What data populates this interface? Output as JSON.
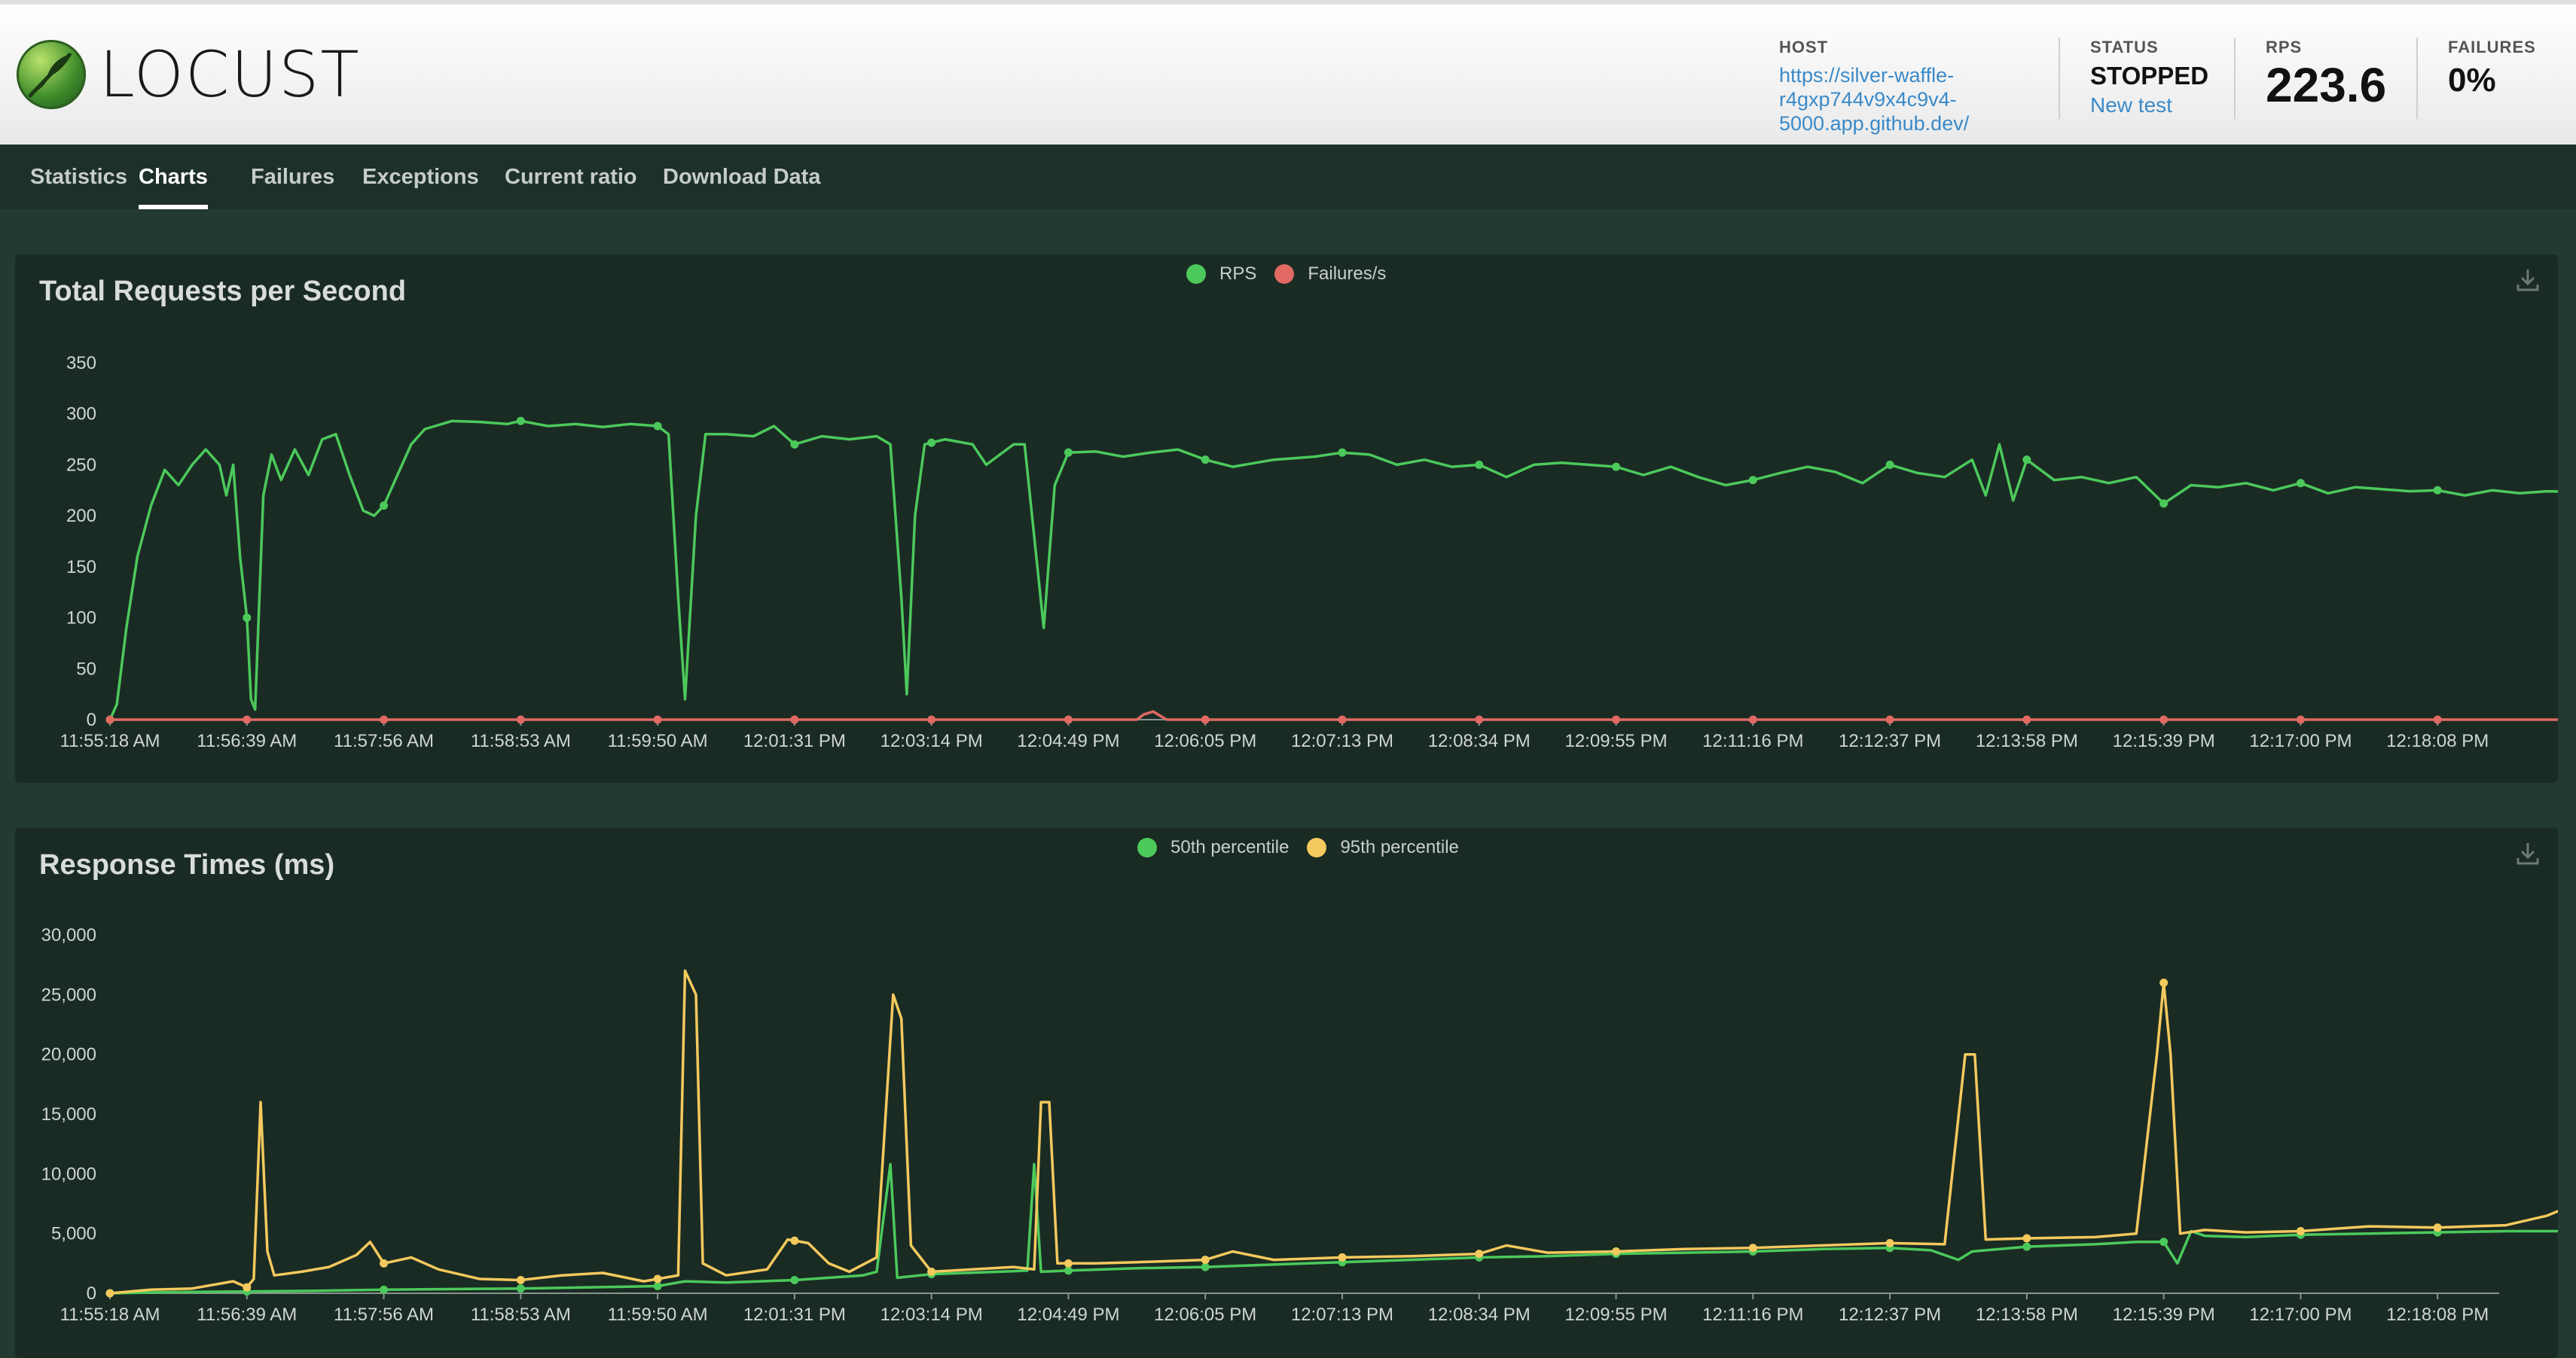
{
  "app": {
    "logo_text": "LOCUST"
  },
  "header": {
    "host_label": "HOST",
    "host_lines": [
      "https://silver-waffle-",
      "r4gxp744v9x4c9v4-",
      "5000.app.github.dev/"
    ],
    "status_label": "STATUS",
    "status_value": "STOPPED",
    "new_test_label": "New test",
    "rps_label": "RPS",
    "rps_value": "223.6",
    "failures_label": "FAILURES",
    "failures_value": "0%"
  },
  "tabs": [
    {
      "label": "Statistics",
      "active": false
    },
    {
      "label": "Charts",
      "active": true
    },
    {
      "label": "Failures",
      "active": false
    },
    {
      "label": "Exceptions",
      "active": false
    },
    {
      "label": "Current ratio",
      "active": false
    },
    {
      "label": "Download Data",
      "active": false
    }
  ],
  "icons": {
    "download": "download-icon",
    "logo": "locust-logo-icon"
  },
  "colors": {
    "rps": "#4cc95b",
    "failures": "#e06a63",
    "p50": "#4cc95b",
    "p95": "#f4c95d"
  },
  "chart_data": [
    {
      "type": "line",
      "title": "Total Requests per Second",
      "x": [
        "11:55:18 AM",
        "11:56:39 AM",
        "11:57:56 AM",
        "11:58:53 AM",
        "11:59:50 AM",
        "12:01:31 PM",
        "12:03:14 PM",
        "12:04:49 PM",
        "12:06:05 PM",
        "12:07:13 PM",
        "12:08:34 PM",
        "12:09:55 PM",
        "12:11:16 PM",
        "12:12:37 PM",
        "12:13:58 PM",
        "12:15:39 PM",
        "12:17:00 PM",
        "12:18:08 PM"
      ],
      "yticks": [
        "0",
        "50",
        "100",
        "150",
        "200",
        "250",
        "300",
        "350"
      ],
      "ylim": [
        0,
        350
      ],
      "legend_position": "top-center",
      "series": [
        {
          "name": "RPS",
          "color": "#4cc95b",
          "values": [
            [
              0,
              0
            ],
            [
              0.05,
              15
            ],
            [
              0.12,
              90
            ],
            [
              0.2,
              160
            ],
            [
              0.3,
              210
            ],
            [
              0.4,
              245
            ],
            [
              0.5,
              230
            ],
            [
              0.6,
              250
            ],
            [
              0.7,
              265
            ],
            [
              0.8,
              250
            ],
            [
              0.85,
              220
            ],
            [
              0.9,
              250
            ],
            [
              0.95,
              160
            ],
            [
              1.0,
              100
            ],
            [
              1.03,
              20
            ],
            [
              1.06,
              10
            ],
            [
              1.12,
              220
            ],
            [
              1.18,
              260
            ],
            [
              1.25,
              235
            ],
            [
              1.35,
              265
            ],
            [
              1.45,
              240
            ],
            [
              1.55,
              275
            ],
            [
              1.65,
              280
            ],
            [
              1.75,
              240
            ],
            [
              1.85,
              205
            ],
            [
              1.93,
              200
            ],
            [
              2.0,
              210
            ],
            [
              2.1,
              240
            ],
            [
              2.2,
              270
            ],
            [
              2.3,
              285
            ],
            [
              2.5,
              293
            ],
            [
              2.7,
              292
            ],
            [
              2.9,
              290
            ],
            [
              3.0,
              293
            ],
            [
              3.2,
              288
            ],
            [
              3.4,
              290
            ],
            [
              3.6,
              287
            ],
            [
              3.8,
              290
            ],
            [
              4.0,
              288
            ],
            [
              4.08,
              280
            ],
            [
              4.15,
              120
            ],
            [
              4.2,
              20
            ],
            [
              4.28,
              200
            ],
            [
              4.35,
              280
            ],
            [
              4.5,
              280
            ],
            [
              4.7,
              278
            ],
            [
              4.85,
              288
            ],
            [
              5.0,
              270
            ],
            [
              5.2,
              278
            ],
            [
              5.4,
              275
            ],
            [
              5.6,
              278
            ],
            [
              5.7,
              270
            ],
            [
              5.78,
              120
            ],
            [
              5.82,
              25
            ],
            [
              5.88,
              200
            ],
            [
              5.95,
              270
            ],
            [
              6.1,
              275
            ],
            [
              6.3,
              270
            ],
            [
              6.4,
              250
            ],
            [
              6.5,
              260
            ],
            [
              6.6,
              270
            ],
            [
              6.68,
              270
            ],
            [
              6.75,
              180
            ],
            [
              6.82,
              90
            ],
            [
              6.9,
              230
            ],
            [
              7.0,
              262
            ],
            [
              7.2,
              263
            ],
            [
              7.4,
              258
            ],
            [
              7.6,
              262
            ],
            [
              7.8,
              265
            ],
            [
              8.0,
              255
            ],
            [
              8.2,
              248
            ],
            [
              8.5,
              255
            ],
            [
              8.8,
              258
            ],
            [
              9.0,
              262
            ],
            [
              9.2,
              260
            ],
            [
              9.4,
              250
            ],
            [
              9.6,
              255
            ],
            [
              9.8,
              248
            ],
            [
              10.0,
              250
            ],
            [
              10.2,
              238
            ],
            [
              10.4,
              250
            ],
            [
              10.6,
              252
            ],
            [
              10.8,
              250
            ],
            [
              11.0,
              248
            ],
            [
              11.2,
              240
            ],
            [
              11.4,
              248
            ],
            [
              11.6,
              238
            ],
            [
              11.8,
              230
            ],
            [
              12.0,
              235
            ],
            [
              12.2,
              242
            ],
            [
              12.4,
              248
            ],
            [
              12.6,
              243
            ],
            [
              12.8,
              232
            ],
            [
              13.0,
              250
            ],
            [
              13.2,
              242
            ],
            [
              13.4,
              238
            ],
            [
              13.6,
              255
            ],
            [
              13.7,
              220
            ],
            [
              13.8,
              270
            ],
            [
              13.9,
              215
            ],
            [
              14.0,
              255
            ],
            [
              14.2,
              235
            ],
            [
              14.4,
              238
            ],
            [
              14.6,
              232
            ],
            [
              14.8,
              238
            ],
            [
              15.0,
              212
            ],
            [
              15.2,
              230
            ],
            [
              15.4,
              228
            ],
            [
              15.6,
              232
            ],
            [
              15.8,
              225
            ],
            [
              16.0,
              232
            ],
            [
              16.2,
              222
            ],
            [
              16.4,
              228
            ],
            [
              16.6,
              226
            ],
            [
              16.8,
              224
            ],
            [
              17.0,
              225
            ],
            [
              17.2,
              220
            ],
            [
              17.4,
              225
            ],
            [
              17.6,
              222
            ],
            [
              17.8,
              224
            ],
            [
              17.95,
              223.6
            ]
          ]
        },
        {
          "name": "Failures/s",
          "color": "#e06a63",
          "values": [
            [
              0,
              0
            ],
            [
              7.5,
              0
            ],
            [
              7.55,
              5
            ],
            [
              7.62,
              8
            ],
            [
              7.68,
              3
            ],
            [
              7.72,
              0
            ],
            [
              17.95,
              0
            ]
          ]
        }
      ]
    },
    {
      "type": "line",
      "title": "Response Times (ms)",
      "x": [
        "11:55:18 AM",
        "11:56:39 AM",
        "11:57:56 AM",
        "11:58:53 AM",
        "11:59:50 AM",
        "12:01:31 PM",
        "12:03:14 PM",
        "12:04:49 PM",
        "12:06:05 PM",
        "12:07:13 PM",
        "12:08:34 PM",
        "12:09:55 PM",
        "12:11:16 PM",
        "12:12:37 PM",
        "12:13:58 PM",
        "12:15:39 PM",
        "12:17:00 PM",
        "12:18:08 PM"
      ],
      "yticks": [
        "0",
        "5,000",
        "10,000",
        "15,000",
        "20,000",
        "25,000",
        "30,000"
      ],
      "ylim": [
        0,
        30000
      ],
      "legend_position": "top-center",
      "series": [
        {
          "name": "50th percentile",
          "color": "#4cc95b",
          "values": [
            [
              0,
              0
            ],
            [
              0.5,
              100
            ],
            [
              1.0,
              150
            ],
            [
              1.5,
              200
            ],
            [
              2.0,
              300
            ],
            [
              3.0,
              400
            ],
            [
              4.0,
              600
            ],
            [
              4.2,
              1000
            ],
            [
              4.5,
              900
            ],
            [
              5.0,
              1100
            ],
            [
              5.5,
              1500
            ],
            [
              5.6,
              1800
            ],
            [
              5.7,
              10800
            ],
            [
              5.75,
              1300
            ],
            [
              6.0,
              1600
            ],
            [
              6.5,
              1800
            ],
            [
              6.7,
              1900
            ],
            [
              6.75,
              10800
            ],
            [
              6.8,
              1800
            ],
            [
              7.0,
              1900
            ],
            [
              7.5,
              2100
            ],
            [
              8.0,
              2200
            ],
            [
              8.5,
              2400
            ],
            [
              9.0,
              2600
            ],
            [
              9.5,
              2800
            ],
            [
              10.0,
              3000
            ],
            [
              10.5,
              3100
            ],
            [
              11.0,
              3300
            ],
            [
              11.5,
              3400
            ],
            [
              12.0,
              3500
            ],
            [
              12.5,
              3700
            ],
            [
              13.0,
              3800
            ],
            [
              13.3,
              3600
            ],
            [
              13.5,
              2800
            ],
            [
              13.6,
              3500
            ],
            [
              14.0,
              3900
            ],
            [
              14.5,
              4100
            ],
            [
              14.8,
              4300
            ],
            [
              15.0,
              4300
            ],
            [
              15.1,
              2500
            ],
            [
              15.2,
              5200
            ],
            [
              15.3,
              4800
            ],
            [
              15.6,
              4700
            ],
            [
              16.0,
              4900
            ],
            [
              16.5,
              5000
            ],
            [
              17.0,
              5100
            ],
            [
              17.5,
              5200
            ],
            [
              17.95,
              5200
            ]
          ]
        },
        {
          "name": "95th percentile",
          "color": "#f4c95d",
          "values": [
            [
              0,
              0
            ],
            [
              0.3,
              300
            ],
            [
              0.6,
              400
            ],
            [
              0.9,
              1000
            ],
            [
              1.0,
              500
            ],
            [
              1.05,
              1200
            ],
            [
              1.1,
              16000
            ],
            [
              1.15,
              3500
            ],
            [
              1.2,
              1500
            ],
            [
              1.4,
              1800
            ],
            [
              1.6,
              2200
            ],
            [
              1.8,
              3200
            ],
            [
              1.9,
              4300
            ],
            [
              2.0,
              2500
            ],
            [
              2.2,
              3000
            ],
            [
              2.4,
              2000
            ],
            [
              2.7,
              1200
            ],
            [
              3.0,
              1100
            ],
            [
              3.3,
              1500
            ],
            [
              3.6,
              1700
            ],
            [
              3.9,
              1000
            ],
            [
              4.15,
              1500
            ],
            [
              4.2,
              27000
            ],
            [
              4.28,
              25000
            ],
            [
              4.33,
              2500
            ],
            [
              4.5,
              1500
            ],
            [
              4.8,
              2000
            ],
            [
              4.95,
              4500
            ],
            [
              5.1,
              4200
            ],
            [
              5.25,
              2500
            ],
            [
              5.4,
              1800
            ],
            [
              5.6,
              3000
            ],
            [
              5.72,
              25000
            ],
            [
              5.78,
              23000
            ],
            [
              5.85,
              4000
            ],
            [
              6.0,
              1800
            ],
            [
              6.3,
              2000
            ],
            [
              6.6,
              2200
            ],
            [
              6.75,
              2000
            ],
            [
              6.8,
              16000
            ],
            [
              6.86,
              16000
            ],
            [
              6.92,
              2500
            ],
            [
              7.2,
              2500
            ],
            [
              7.5,
              2600
            ],
            [
              8.0,
              2800
            ],
            [
              8.2,
              3500
            ],
            [
              8.5,
              2800
            ],
            [
              9.0,
              3000
            ],
            [
              9.5,
              3100
            ],
            [
              10.0,
              3300
            ],
            [
              10.2,
              4000
            ],
            [
              10.5,
              3400
            ],
            [
              11.0,
              3500
            ],
            [
              11.5,
              3700
            ],
            [
              12.0,
              3800
            ],
            [
              12.5,
              4000
            ],
            [
              13.0,
              4200
            ],
            [
              13.4,
              4100
            ],
            [
              13.55,
              20000
            ],
            [
              13.62,
              20000
            ],
            [
              13.7,
              4500
            ],
            [
              14.0,
              4600
            ],
            [
              14.5,
              4700
            ],
            [
              14.8,
              5000
            ],
            [
              14.95,
              20000
            ],
            [
              15.0,
              26000
            ],
            [
              15.05,
              20000
            ],
            [
              15.12,
              5000
            ],
            [
              15.3,
              5300
            ],
            [
              15.6,
              5100
            ],
            [
              16.0,
              5200
            ],
            [
              16.5,
              5600
            ],
            [
              17.0,
              5500
            ],
            [
              17.5,
              5700
            ],
            [
              17.8,
              6500
            ],
            [
              17.95,
              7200
            ]
          ]
        }
      ]
    }
  ]
}
